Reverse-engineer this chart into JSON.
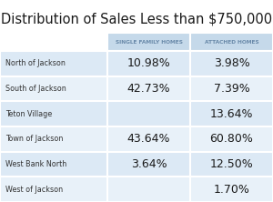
{
  "title": "Distribution of Sales Less than $750,000",
  "col_headers": [
    "SINGLE FAMILY HOMES",
    "ATTACHED HOMES"
  ],
  "rows": [
    {
      "label": "North of Jackson",
      "sfh": "10.98%",
      "ah": "3.98%"
    },
    {
      "label": "South of Jackson",
      "sfh": "42.73%",
      "ah": "7.39%"
    },
    {
      "label": "Teton Village",
      "sfh": "",
      "ah": "13.64%"
    },
    {
      "label": "Town of Jackson",
      "sfh": "43.64%",
      "ah": "60.80%"
    },
    {
      "label": "West Bank North",
      "sfh": "3.64%",
      "ah": "12.50%"
    },
    {
      "label": "West of Jackson",
      "sfh": "",
      "ah": "1.70%"
    }
  ],
  "header_bg": "#c5d9ea",
  "row_bg_light": "#dce9f5",
  "row_bg_lighter": "#e8f1f9",
  "border_color": "#ffffff",
  "title_color": "#1a1a1a",
  "header_text_color": "#6a8aaa",
  "label_color": "#333333",
  "value_color": "#1a1a1a",
  "bg_color": "#ffffff",
  "title_fontsize": 10.5,
  "header_fontsize": 4.2,
  "label_fontsize": 5.8,
  "value_fontsize": 9.0
}
